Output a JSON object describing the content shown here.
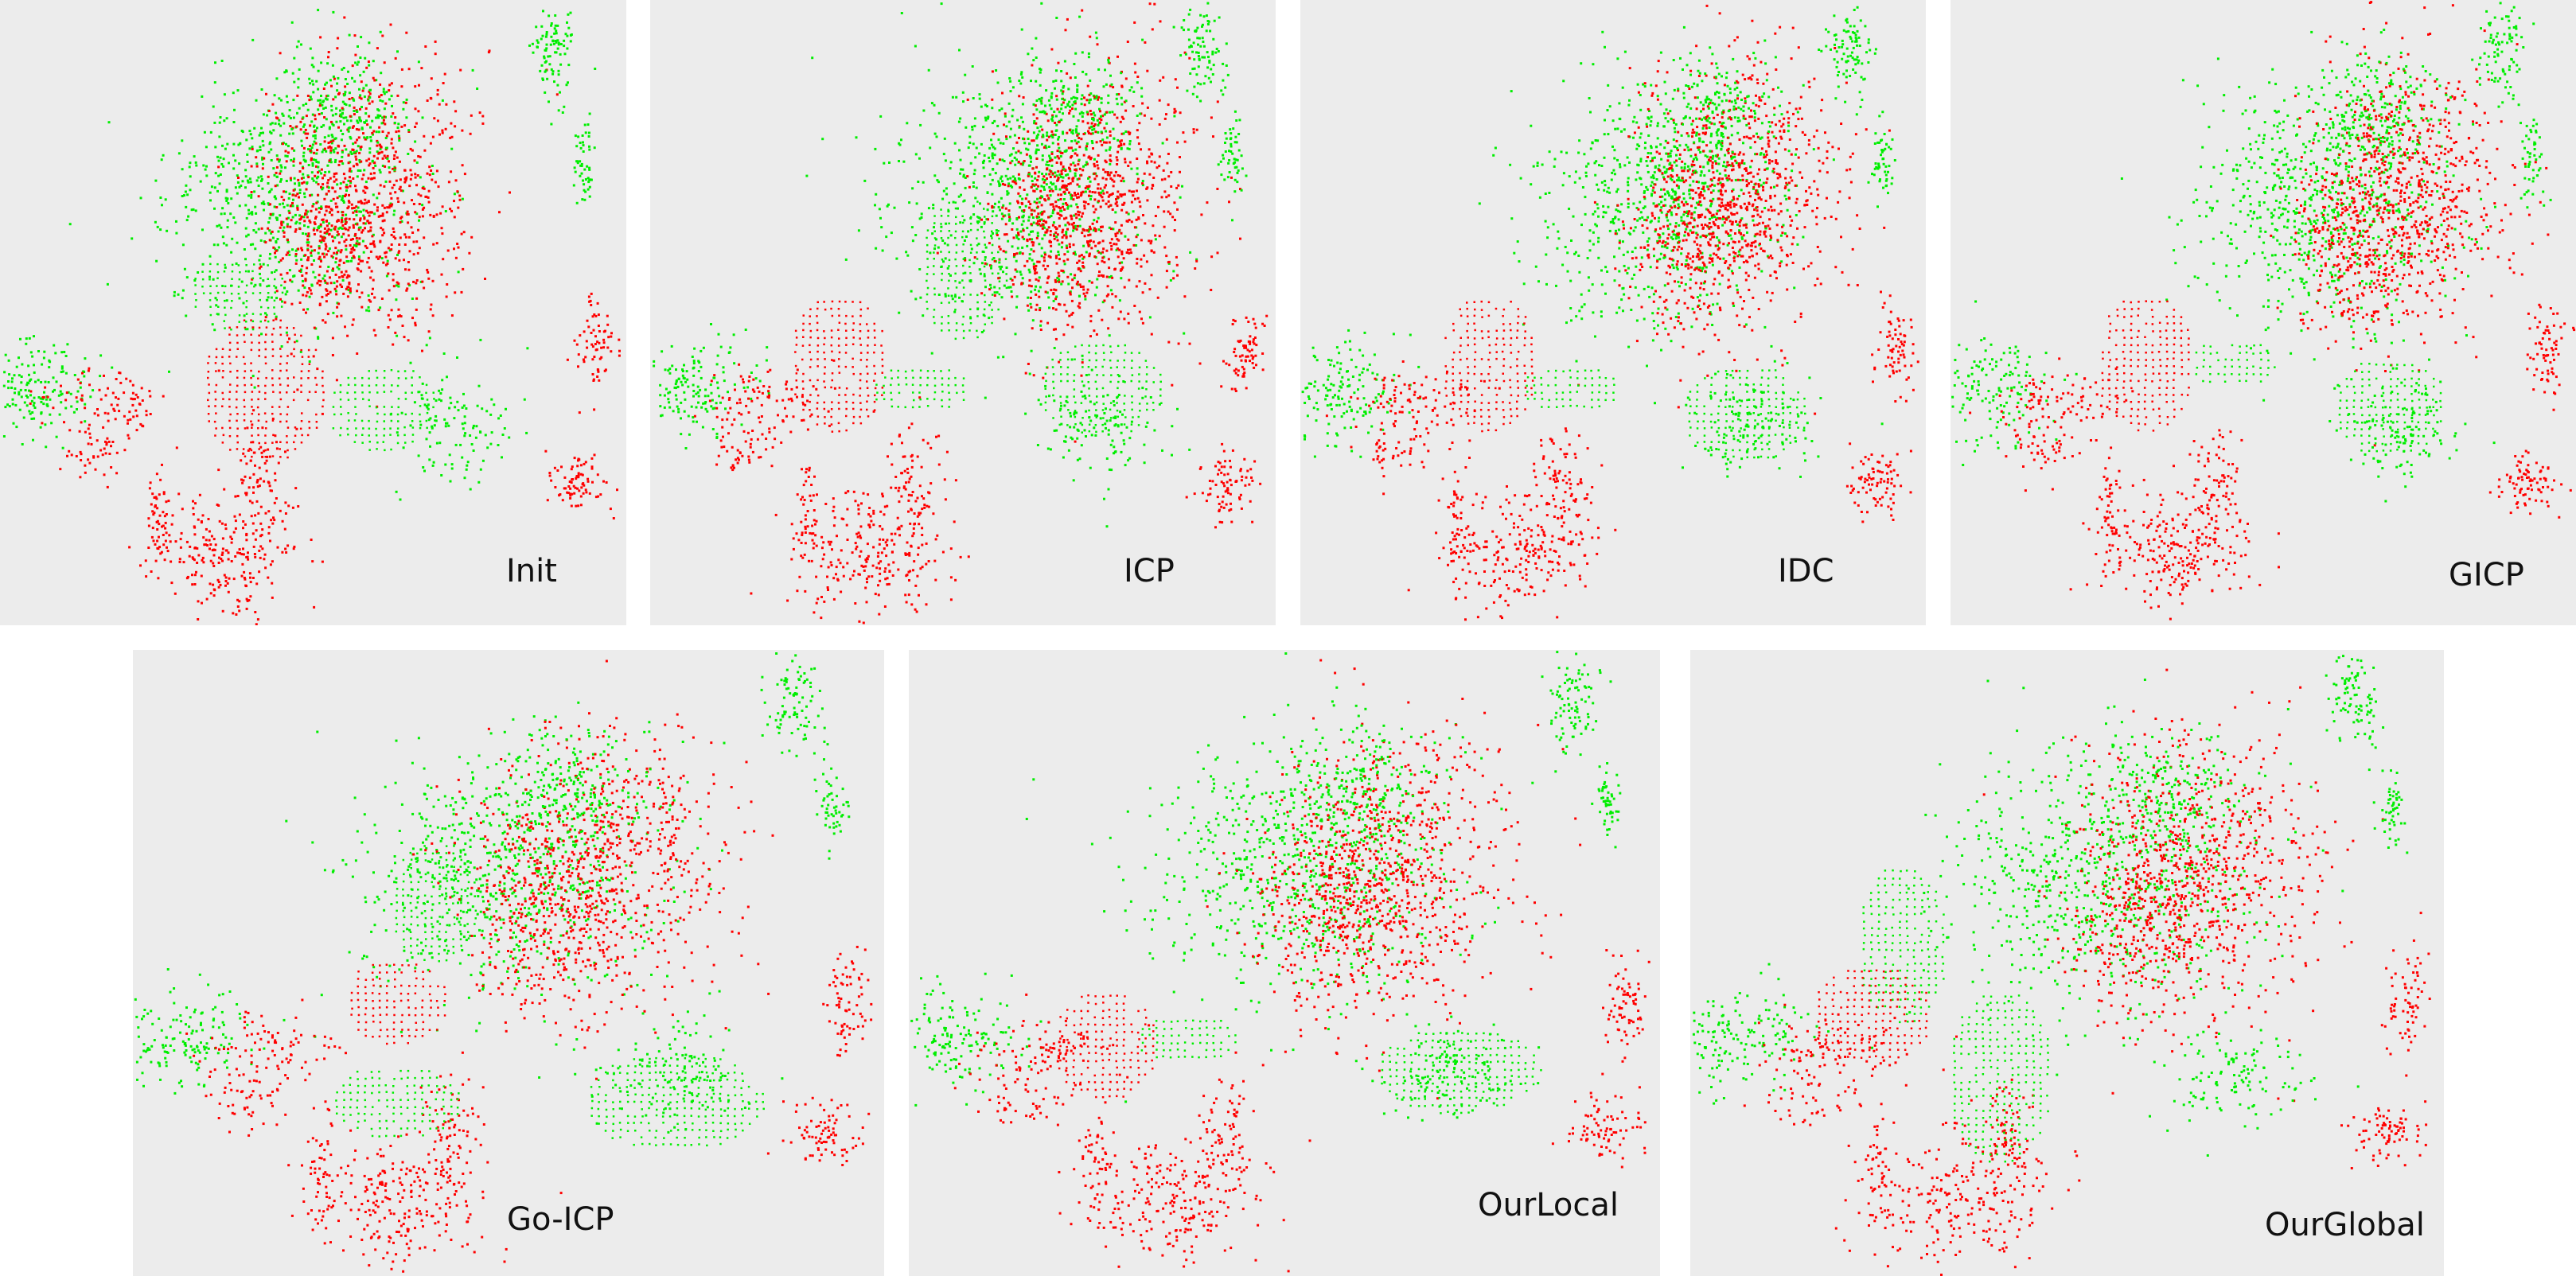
{
  "figure": {
    "panels": [
      {
        "id": "init",
        "label": "Init"
      },
      {
        "id": "icp",
        "label": "ICP"
      },
      {
        "id": "idc",
        "label": "IDC"
      },
      {
        "id": "gicp",
        "label": "GICP"
      },
      {
        "id": "go-icp",
        "label": "Go-ICP"
      },
      {
        "id": "ourlocal",
        "label": "OurLocal"
      },
      {
        "id": "ourglobal",
        "label": "OurGlobal"
      }
    ],
    "colors": {
      "panel_background": "#ececec",
      "source_cloud": "#ff0000",
      "target_cloud": "#00ee00"
    }
  }
}
